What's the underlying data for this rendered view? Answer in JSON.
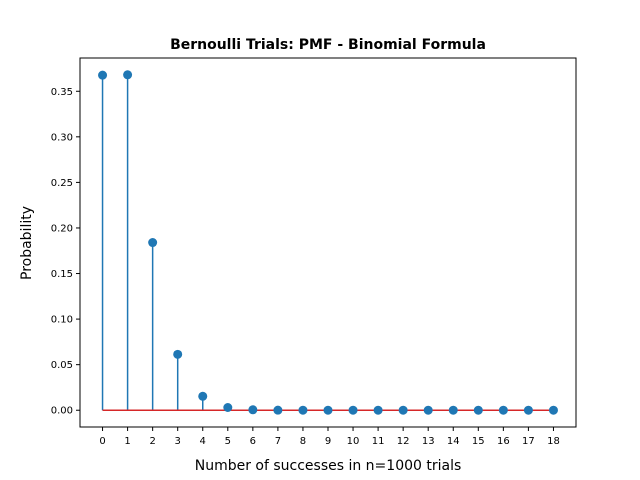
{
  "chart_data": {
    "type": "stem",
    "title": "Bernoulli Trials: PMF - Binomial Formula",
    "xlabel": "Number of successes in n=1000 trials",
    "ylabel": "Probability",
    "x": [
      0,
      1,
      2,
      3,
      4,
      5,
      6,
      7,
      8,
      9,
      10,
      11,
      12,
      13,
      14,
      15,
      16,
      17,
      18
    ],
    "values": [
      0.3677,
      0.3681,
      0.184,
      0.0613,
      0.0153,
      0.003,
      0.0005,
      0.0001,
      0.0,
      0.0,
      0.0,
      0.0,
      0.0,
      0.0,
      0.0,
      0.0,
      0.0,
      0.0,
      0.0
    ],
    "xlim": [
      -0.9,
      18.9
    ],
    "ylim": [
      -0.0184,
      0.3865
    ],
    "xticks": [
      0,
      1,
      2,
      3,
      4,
      5,
      6,
      7,
      8,
      9,
      10,
      11,
      12,
      13,
      14,
      15,
      16,
      17,
      18
    ],
    "yticks": [
      "0.00",
      "0.05",
      "0.10",
      "0.15",
      "0.20",
      "0.25",
      "0.30",
      "0.35"
    ],
    "grid": false,
    "colors": {
      "stem": "#1f77b4",
      "marker": "#1f77b4",
      "baseline": "#d62728",
      "axes": "#000000"
    }
  }
}
